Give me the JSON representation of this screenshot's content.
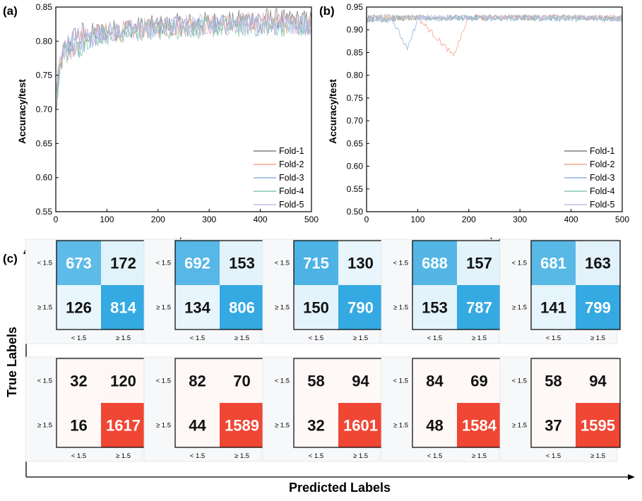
{
  "panels": {
    "a": "(a)",
    "b": "(b)",
    "c": "(c)"
  },
  "chart_data": [
    {
      "type": "line",
      "panel": "(a)",
      "xlabel": "step",
      "ylabel": "Accuracy/test",
      "xlim": [
        0,
        500
      ],
      "ylim": [
        0.55,
        0.85
      ],
      "xticks": [
        0,
        100,
        200,
        300,
        400,
        500
      ],
      "yticks": [
        0.55,
        0.6,
        0.65,
        0.7,
        0.75,
        0.8,
        0.85
      ],
      "legend_position": "bottom-right",
      "colors": [
        "#7f7f7f",
        "#f2a58a",
        "#8fb4e0",
        "#86c9ac",
        "#c9b8ec"
      ],
      "series": [
        {
          "name": "Fold-1",
          "x": [
            0,
            10,
            20,
            40,
            60,
            100,
            150,
            200,
            250,
            300,
            350,
            400,
            450,
            500
          ],
          "y": [
            0.7,
            0.77,
            0.79,
            0.805,
            0.81,
            0.815,
            0.82,
            0.823,
            0.826,
            0.828,
            0.83,
            0.834,
            0.832,
            0.83
          ]
        },
        {
          "name": "Fold-2",
          "x": [
            0,
            10,
            20,
            40,
            60,
            100,
            150,
            200,
            250,
            300,
            350,
            400,
            450,
            500
          ],
          "y": [
            0.72,
            0.775,
            0.79,
            0.8,
            0.806,
            0.812,
            0.816,
            0.82,
            0.822,
            0.824,
            0.826,
            0.827,
            0.826,
            0.825
          ]
        },
        {
          "name": "Fold-3",
          "x": [
            0,
            10,
            20,
            40,
            60,
            100,
            150,
            200,
            250,
            300,
            350,
            400,
            450,
            500
          ],
          "y": [
            0.73,
            0.77,
            0.785,
            0.795,
            0.8,
            0.81,
            0.815,
            0.818,
            0.82,
            0.822,
            0.823,
            0.824,
            0.824,
            0.823
          ]
        },
        {
          "name": "Fold-4",
          "x": [
            0,
            10,
            20,
            40,
            60,
            100,
            150,
            200,
            250,
            300,
            350,
            400,
            450,
            500
          ],
          "y": [
            0.71,
            0.77,
            0.787,
            0.797,
            0.803,
            0.81,
            0.814,
            0.817,
            0.819,
            0.82,
            0.821,
            0.822,
            0.822,
            0.821
          ]
        },
        {
          "name": "Fold-5",
          "x": [
            0,
            10,
            20,
            40,
            60,
            100,
            150,
            200,
            250,
            300,
            350,
            400,
            450,
            500
          ],
          "y": [
            0.72,
            0.775,
            0.79,
            0.8,
            0.807,
            0.813,
            0.817,
            0.82,
            0.823,
            0.825,
            0.826,
            0.827,
            0.826,
            0.826
          ]
        }
      ]
    },
    {
      "type": "line",
      "panel": "(b)",
      "xlabel": "step",
      "ylabel": "Accuracy/test",
      "xlim": [
        0,
        500
      ],
      "ylim": [
        0.5,
        0.95
      ],
      "xticks": [
        0,
        100,
        200,
        300,
        400,
        500
      ],
      "yticks": [
        0.5,
        0.55,
        0.6,
        0.65,
        0.7,
        0.75,
        0.8,
        0.85,
        0.9,
        0.95
      ],
      "legend_position": "bottom-right",
      "colors": [
        "#7f7f7f",
        "#f2a58a",
        "#8fb4e0",
        "#86c9ac",
        "#c9b8ec"
      ],
      "series": [
        {
          "name": "Fold-1",
          "x": [
            0,
            100,
            200,
            300,
            400,
            500
          ],
          "y": [
            0.925,
            0.926,
            0.927,
            0.927,
            0.927,
            0.926
          ]
        },
        {
          "name": "Fold-2",
          "x": [
            0,
            100,
            170,
            200,
            300,
            400,
            500
          ],
          "y": [
            0.926,
            0.927,
            0.843,
            0.928,
            0.928,
            0.927,
            0.927
          ]
        },
        {
          "name": "Fold-3",
          "x": [
            0,
            50,
            80,
            100,
            200,
            300,
            400,
            500
          ],
          "y": [
            0.924,
            0.923,
            0.856,
            0.924,
            0.925,
            0.925,
            0.924,
            0.923
          ]
        },
        {
          "name": "Fold-4",
          "x": [
            0,
            100,
            200,
            300,
            400,
            500
          ],
          "y": [
            0.925,
            0.926,
            0.926,
            0.926,
            0.926,
            0.925
          ]
        },
        {
          "name": "Fold-5",
          "x": [
            0,
            100,
            200,
            300,
            400,
            500
          ],
          "y": [
            0.926,
            0.927,
            0.927,
            0.927,
            0.927,
            0.926
          ]
        }
      ]
    },
    {
      "type": "heatmap",
      "panel": "(c)",
      "xlabel": "Predicted Labels",
      "ylabel": "True Labels",
      "row_labels": [
        "< 1.5",
        "≥ 1.5"
      ],
      "col_labels": [
        "< 1.5",
        "≥ 1.5"
      ],
      "matrices": [
        {
          "group": "blue",
          "color": "#35a9e1",
          "values": [
            [
              673,
              172
            ],
            [
              126,
              814
            ]
          ]
        },
        {
          "group": "blue",
          "color": "#35a9e1",
          "values": [
            [
              692,
              153
            ],
            [
              134,
              806
            ]
          ]
        },
        {
          "group": "blue",
          "color": "#35a9e1",
          "values": [
            [
              715,
              130
            ],
            [
              150,
              790
            ]
          ]
        },
        {
          "group": "blue",
          "color": "#35a9e1",
          "values": [
            [
              688,
              157
            ],
            [
              153,
              787
            ]
          ]
        },
        {
          "group": "blue",
          "color": "#35a9e1",
          "values": [
            [
              681,
              163
            ],
            [
              141,
              799
            ]
          ]
        },
        {
          "group": "red",
          "color": "#f04634",
          "values": [
            [
              32,
              120
            ],
            [
              16,
              1617
            ]
          ]
        },
        {
          "group": "red",
          "color": "#f04634",
          "values": [
            [
              82,
              70
            ],
            [
              44,
              1589
            ]
          ]
        },
        {
          "group": "red",
          "color": "#f04634",
          "values": [
            [
              58,
              94
            ],
            [
              32,
              1601
            ]
          ]
        },
        {
          "group": "red",
          "color": "#f04634",
          "values": [
            [
              84,
              69
            ],
            [
              48,
              1584
            ]
          ]
        },
        {
          "group": "red",
          "color": "#f04634",
          "values": [
            [
              58,
              94
            ],
            [
              37,
              1595
            ]
          ]
        }
      ]
    }
  ]
}
